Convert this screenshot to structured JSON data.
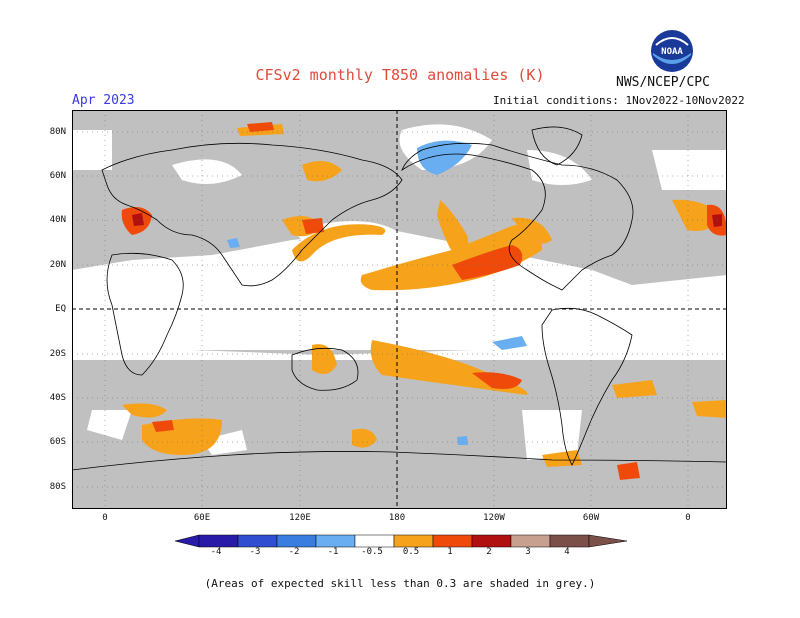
{
  "header": {
    "title": "CFSv2 monthly T850 anomalies (K)",
    "agency": "NWS/NCEP/CPC",
    "logo_text": "NOAA",
    "month": "Apr 2023",
    "initial_conditions": "Initial conditions: 1Nov2022-10Nov2022"
  },
  "map": {
    "lat_labels": [
      "80N",
      "60N",
      "40N",
      "20N",
      "EQ",
      "20S",
      "40S",
      "60S",
      "80S"
    ],
    "lon_labels": [
      "0",
      "60E",
      "120E",
      "180",
      "120W",
      "60W",
      "0"
    ],
    "reference_lines": [
      "equator",
      "dateline"
    ],
    "colors": {
      "skill_mask_grey": "#c0c0c0",
      "land_outline": "#000000"
    },
    "positive_anomaly_regions": [
      {
        "label": "eastern_north_pacific",
        "level": 1
      },
      {
        "label": "south_pacific_band",
        "level": 0.5
      },
      {
        "label": "japan_north_pacific",
        "level": 1
      },
      {
        "label": "mediterranean",
        "level": 2
      },
      {
        "label": "southern_ocean_south_atlantic",
        "level": 1
      }
    ],
    "negative_anomaly_regions": [
      {
        "label": "greenland_arctic",
        "level": -0.5
      },
      {
        "label": "south_pacific_small",
        "level": -0.5
      }
    ]
  },
  "colorbar": {
    "labels": [
      "-4",
      "-3",
      "-2",
      "-1",
      "-0.5",
      "0.5",
      "1",
      "2",
      "3",
      "4"
    ],
    "colors": [
      "#2a1aa8",
      "#2f4fd0",
      "#3a7de0",
      "#68aef0",
      "#ffffff",
      "#f7a21b",
      "#f04a0a",
      "#b01010",
      "#c8a090",
      "#7a5048"
    ]
  },
  "footnote": "(Areas of expected skill less than 0.3 are shaded in grey.)"
}
